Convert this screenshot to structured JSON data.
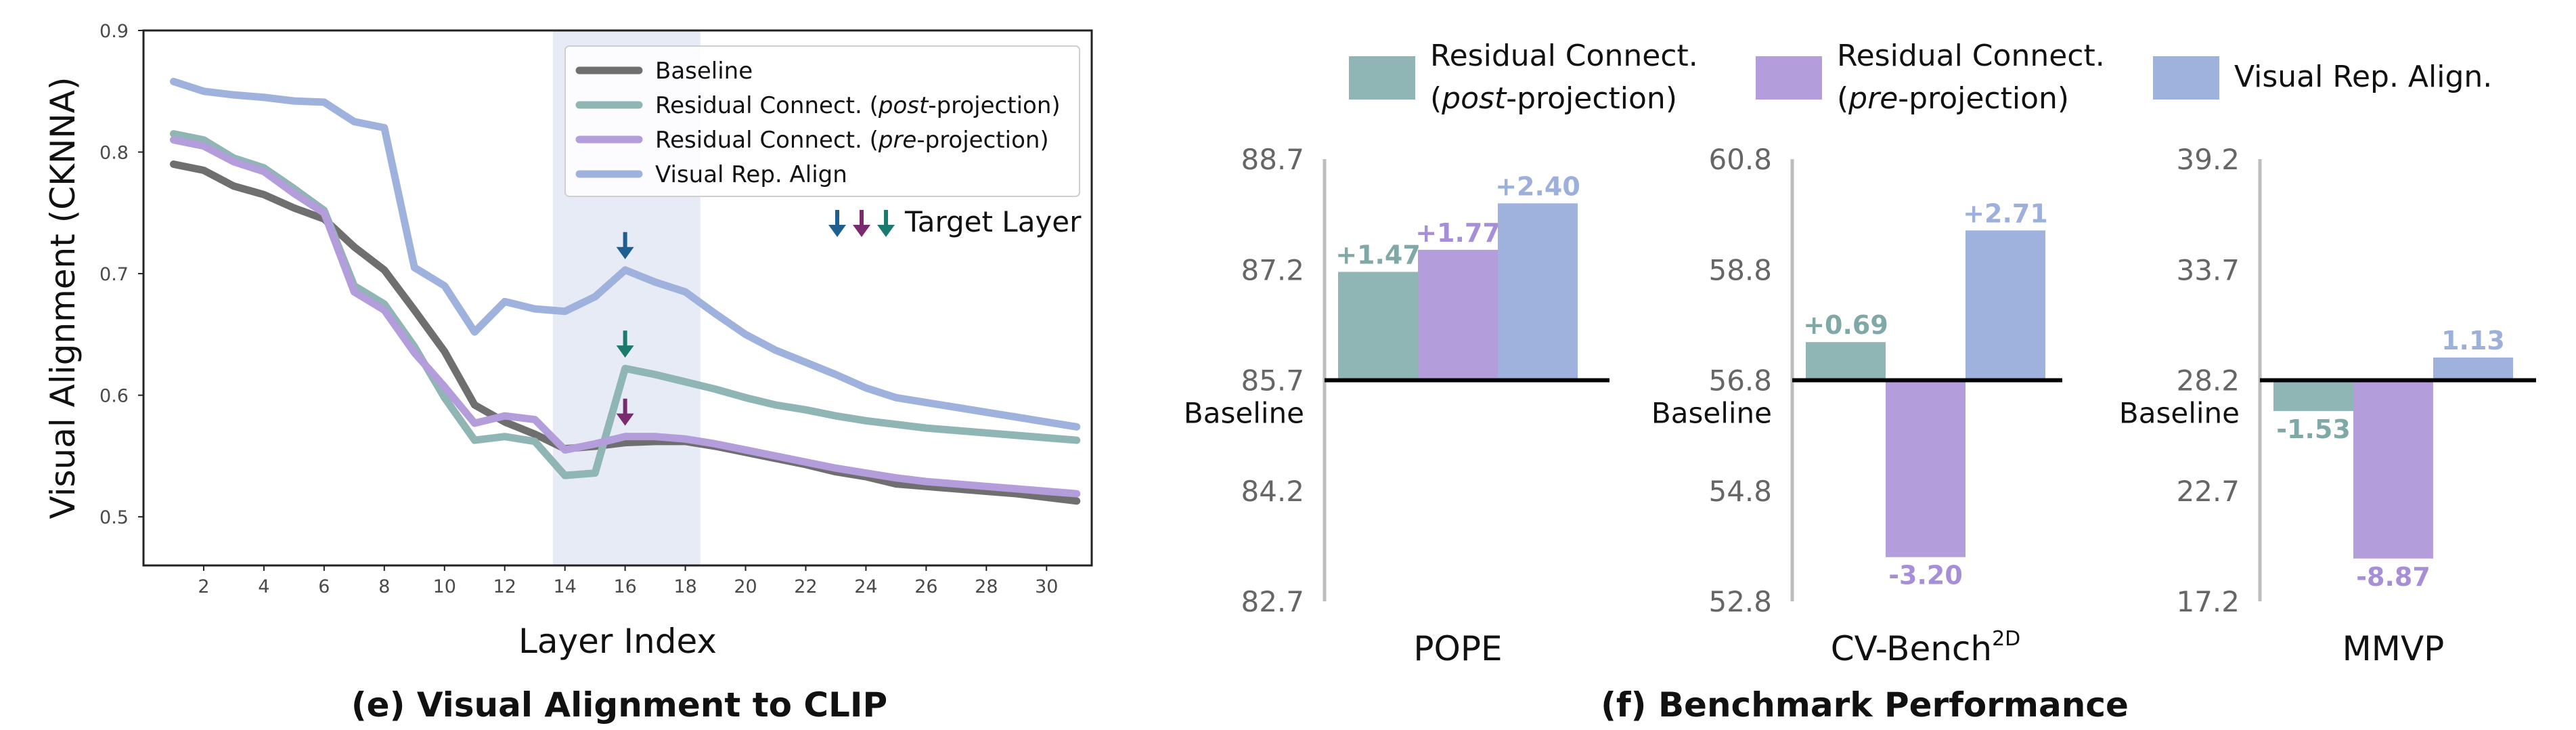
{
  "chart_data": [
    {
      "type": "line",
      "caption": "(e) Visual Alignment to CLIP",
      "xlabel": "Layer Index",
      "ylabel": "Visual Alignment (CKNNA)",
      "xlim": [
        0,
        31.5
      ],
      "ylim": [
        0.46,
        0.9
      ],
      "xticks": [
        2,
        4,
        6,
        8,
        10,
        12,
        14,
        16,
        18,
        20,
        22,
        24,
        26,
        28,
        30
      ],
      "yticks": [
        0.5,
        0.6,
        0.7,
        0.8,
        0.9
      ],
      "highlight_x_range": [
        13.6,
        18.5
      ],
      "x": [
        1,
        2,
        3,
        4,
        5,
        6,
        7,
        8,
        9,
        10,
        11,
        12,
        13,
        14,
        15,
        16,
        17,
        18,
        19,
        20,
        21,
        22,
        23,
        24,
        25,
        26,
        27,
        28,
        29,
        30,
        31
      ],
      "series": [
        {
          "name": "Baseline",
          "color": "#6f6f6f",
          "values": [
            0.79,
            0.785,
            0.772,
            0.765,
            0.754,
            0.745,
            0.722,
            0.703,
            0.67,
            0.636,
            0.592,
            0.578,
            0.568,
            0.556,
            0.558,
            0.561,
            0.562,
            0.562,
            0.558,
            0.553,
            0.548,
            0.543,
            0.537,
            0.533,
            0.527,
            0.525,
            0.523,
            0.521,
            0.519,
            0.516,
            0.513
          ]
        },
        {
          "name": "Residual Connect. (post-projection)",
          "name_prefix": "Residual Connect. (",
          "name_italic": "post",
          "name_suffix": "-projection)",
          "color": "#8fb5b4",
          "values": [
            0.815,
            0.81,
            0.795,
            0.787,
            0.77,
            0.752,
            0.69,
            0.675,
            0.64,
            0.598,
            0.563,
            0.566,
            0.562,
            0.534,
            0.536,
            0.622,
            0.617,
            0.611,
            0.605,
            0.598,
            0.592,
            0.588,
            0.583,
            0.579,
            0.576,
            0.573,
            0.571,
            0.569,
            0.567,
            0.565,
            0.563
          ]
        },
        {
          "name": "Residual Connect. (pre-projection)",
          "name_prefix": "Residual Connect. (",
          "name_italic": "pre",
          "name_suffix": "-projection)",
          "color": "#b39ddb",
          "values": [
            0.81,
            0.805,
            0.792,
            0.784,
            0.766,
            0.75,
            0.685,
            0.67,
            0.635,
            0.607,
            0.577,
            0.583,
            0.58,
            0.555,
            0.56,
            0.566,
            0.566,
            0.564,
            0.56,
            0.555,
            0.55,
            0.545,
            0.54,
            0.536,
            0.532,
            0.529,
            0.527,
            0.525,
            0.523,
            0.521,
            0.519
          ]
        },
        {
          "name": "Visual Rep. Align",
          "color": "#9eb2dd",
          "values": [
            0.858,
            0.85,
            0.847,
            0.845,
            0.842,
            0.841,
            0.825,
            0.82,
            0.705,
            0.69,
            0.652,
            0.677,
            0.671,
            0.669,
            0.681,
            0.703,
            0.693,
            0.685,
            0.667,
            0.65,
            0.637,
            0.627,
            0.617,
            0.606,
            0.598,
            0.594,
            0.59,
            0.586,
            0.582,
            0.578,
            0.574
          ]
        }
      ],
      "target_layer": {
        "label": "Target Layer",
        "layer": 16,
        "arrows": [
          {
            "series": "Visual Rep. Align",
            "color": "#1f5e8f"
          },
          {
            "series": "Residual Connect. (post-projection)",
            "color": "#1b7a6e"
          },
          {
            "series": "Residual Connect. (pre-projection)",
            "color": "#7a2a6e"
          }
        ],
        "legend_arrow_colors": [
          "#1f5e8f",
          "#7a2a6e",
          "#1b7a6e"
        ]
      }
    },
    {
      "type": "bar",
      "caption": "(f) Benchmark Performance",
      "baseline_label": "Baseline",
      "legend": [
        {
          "line1": "Residual Connect.",
          "line2_prefix": "(",
          "line2_italic": "post",
          "line2_suffix": "-projection)",
          "color": "#8fb5b4"
        },
        {
          "line1": "Residual Connect.",
          "line2_prefix": "(",
          "line2_italic": "pre",
          "line2_suffix": "-projection)",
          "color": "#b39ddb"
        },
        {
          "line1": "Visual Rep. Align.",
          "color": "#9eb2dd"
        }
      ],
      "label_colors": [
        "#7fa8a7",
        "#a68fd6",
        "#9db0dc"
      ],
      "panels": [
        {
          "name": "POPE",
          "ylim": [
            82.7,
            88.7
          ],
          "yticks": [
            82.7,
            84.2,
            85.7,
            87.2,
            88.7
          ],
          "baseline": 85.7,
          "values": [
            1.47,
            1.77,
            2.4
          ],
          "labels": [
            "+1.47",
            "+1.77",
            "+2.40"
          ]
        },
        {
          "name": "CV-Bench",
          "name_sup": "2D",
          "ylim": [
            52.8,
            60.8
          ],
          "yticks": [
            52.8,
            54.8,
            56.8,
            58.8,
            60.8
          ],
          "baseline": 56.8,
          "values": [
            0.69,
            -3.2,
            2.71
          ],
          "labels": [
            "+0.69",
            "-3.20",
            "+2.71"
          ]
        },
        {
          "name": "MMVP",
          "ylim": [
            17.2,
            39.2
          ],
          "yticks": [
            17.2,
            22.7,
            28.2,
            33.7,
            39.2
          ],
          "baseline": 28.2,
          "values": [
            -1.53,
            -8.87,
            1.13
          ],
          "labels": [
            "-1.53",
            "-8.87",
            "1.13"
          ]
        }
      ]
    }
  ]
}
